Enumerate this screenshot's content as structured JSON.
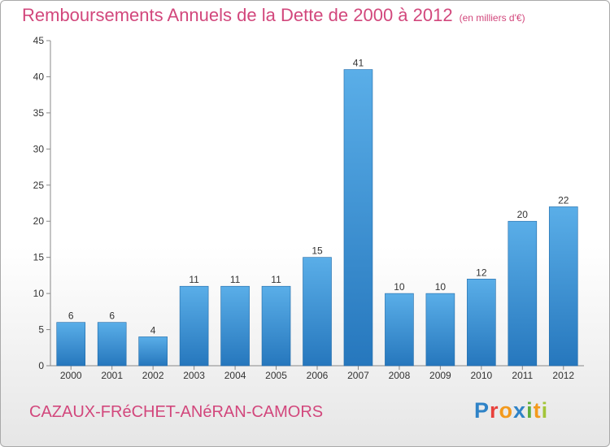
{
  "header": {
    "title": "Remboursements Annuels de la Dette de 2000 à 2012",
    "unit_note": "(en milliers d'€)"
  },
  "footer": {
    "commune": "CAZAUX-FRéCHET-ANéRAN-CAMORS",
    "logo_letters": [
      "P",
      "r",
      "o",
      "x",
      "i",
      "t",
      "i"
    ]
  },
  "chart_data": {
    "type": "bar",
    "title": "Remboursements Annuels de la Dette de 2000 à 2012",
    "xlabel": "",
    "ylabel": "",
    "categories": [
      "2000",
      "2001",
      "2002",
      "2003",
      "2004",
      "2005",
      "2006",
      "2007",
      "2008",
      "2009",
      "2010",
      "2011",
      "2012"
    ],
    "values": [
      6,
      6,
      4,
      11,
      11,
      11,
      15,
      41,
      10,
      10,
      12,
      20,
      22
    ],
    "ylim": [
      0,
      45
    ],
    "yticks": [
      0,
      5,
      10,
      15,
      20,
      25,
      30,
      35,
      40,
      45
    ],
    "grid": false,
    "bar_color_light": "#5aaee8",
    "bar_color_dark": "#2677bd"
  }
}
